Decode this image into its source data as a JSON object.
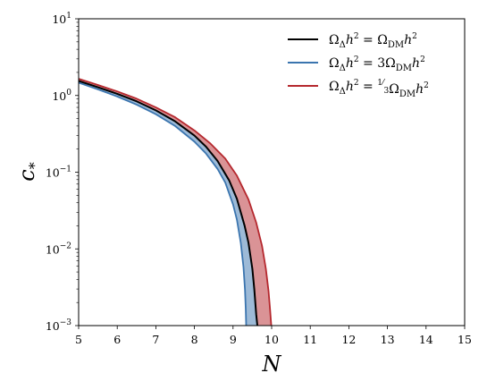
{
  "chart_data": {
    "type": "line",
    "xlabel": "N",
    "ylabel": "c_*",
    "xlim": [
      5,
      15
    ],
    "ylim": [
      0.001,
      10
    ],
    "yscale": "log",
    "grid": false,
    "legend_position": "top-right",
    "x_ticks": [
      5,
      6,
      7,
      8,
      9,
      10,
      11,
      12,
      13,
      14,
      15
    ],
    "x_tick_labels": [
      "5",
      "6",
      "7",
      "8",
      "9",
      "10",
      "11",
      "12",
      "13",
      "14",
      "15"
    ],
    "y_ticks": [
      0.001,
      0.01,
      0.1,
      1,
      10
    ],
    "y_tick_labels": [
      {
        "base": "10",
        "exp": "−3"
      },
      {
        "base": "10",
        "exp": "−2"
      },
      {
        "base": "10",
        "exp": "−1"
      },
      {
        "base": "10",
        "exp": "0"
      },
      {
        "base": "10",
        "exp": "1"
      }
    ],
    "series": [
      {
        "name": "ΩΔh² = ΩDMh²",
        "legend_label": {
          "lhs": "Ω",
          "lhs_sub": "Δ",
          "lhs_h": "h",
          "eq": " = ",
          "coef": "",
          "frac_num": "",
          "frac_den": "",
          "rhs": "Ω",
          "rhs_sub": "DM",
          "rhs_h": "h"
        },
        "color": "#000000",
        "x": [
          5.0,
          5.5,
          6.0,
          6.5,
          7.0,
          7.5,
          8.0,
          8.3,
          8.6,
          8.9,
          9.1,
          9.3,
          9.4,
          9.5,
          9.55,
          9.6,
          9.63
        ],
        "y": [
          1.55,
          1.28,
          1.05,
          0.84,
          0.64,
          0.46,
          0.3,
          0.215,
          0.14,
          0.078,
          0.045,
          0.02,
          0.012,
          0.0055,
          0.003,
          0.0014,
          0.001
        ]
      },
      {
        "name": "ΩΔh² = 3ΩDMh²",
        "legend_label": {
          "lhs": "Ω",
          "lhs_sub": "Δ",
          "lhs_h": "h",
          "eq": " = ",
          "coef": "3",
          "frac_num": "",
          "frac_den": "",
          "rhs": "Ω",
          "rhs_sub": "DM",
          "rhs_h": "h"
        },
        "color": "#3b75af",
        "x": [
          5.0,
          5.5,
          6.0,
          6.5,
          7.0,
          7.5,
          8.0,
          8.3,
          8.6,
          8.8,
          9.0,
          9.1,
          9.2,
          9.27,
          9.31,
          9.33,
          9.34
        ],
        "y": [
          1.47,
          1.2,
          0.97,
          0.76,
          0.57,
          0.4,
          0.25,
          0.175,
          0.11,
          0.073,
          0.038,
          0.024,
          0.012,
          0.0058,
          0.0029,
          0.0016,
          0.001
        ]
      },
      {
        "name": "ΩΔh² = ⅓ΩDMh²",
        "legend_label": {
          "lhs": "Ω",
          "lhs_sub": "Δ",
          "lhs_h": "h",
          "eq": " = ",
          "coef": "",
          "frac_num": "1",
          "frac_den": "3",
          "rhs": "Ω",
          "rhs_sub": "DM",
          "rhs_h": "h"
        },
        "color": "#b5282e",
        "x": [
          5.0,
          5.5,
          6.0,
          6.5,
          7.0,
          7.5,
          8.0,
          8.4,
          8.8,
          9.1,
          9.4,
          9.6,
          9.75,
          9.85,
          9.92,
          9.96,
          9.99
        ],
        "y": [
          1.65,
          1.37,
          1.13,
          0.91,
          0.7,
          0.52,
          0.35,
          0.24,
          0.15,
          0.09,
          0.044,
          0.022,
          0.011,
          0.0055,
          0.0028,
          0.0016,
          0.001
        ]
      }
    ]
  }
}
